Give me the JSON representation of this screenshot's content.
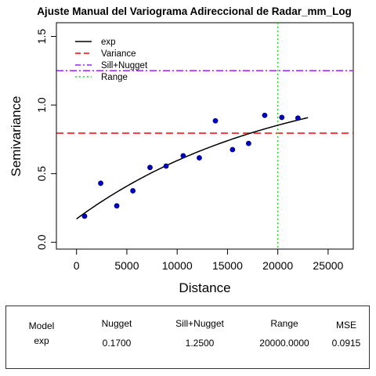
{
  "chart_data": {
    "type": "scatter",
    "title": "Ajuste Manual del Variograma Adireccional de Radar_mm_Log",
    "xlabel": "Distance",
    "ylabel": "Semivariance",
    "xlim": [
      -2000,
      27500
    ],
    "ylim": [
      -0.05,
      1.6
    ],
    "xticks": [
      0,
      5000,
      10000,
      15000,
      20000,
      25000
    ],
    "yticks": [
      0.0,
      0.5,
      1.0,
      1.5
    ],
    "xtick_labels": [
      "0",
      "5000",
      "10000",
      "15000",
      "20000",
      "25000"
    ],
    "ytick_labels": [
      "0.0",
      "0.5",
      "1.0",
      "1.5"
    ],
    "grid": false,
    "legend_position": "top-left",
    "points": [
      {
        "x": 800,
        "y": 0.19
      },
      {
        "x": 2400,
        "y": 0.43
      },
      {
        "x": 4000,
        "y": 0.265
      },
      {
        "x": 5600,
        "y": 0.375
      },
      {
        "x": 7300,
        "y": 0.545
      },
      {
        "x": 8900,
        "y": 0.555
      },
      {
        "x": 10600,
        "y": 0.63
      },
      {
        "x": 12200,
        "y": 0.615
      },
      {
        "x": 13800,
        "y": 0.885
      },
      {
        "x": 15500,
        "y": 0.675
      },
      {
        "x": 17100,
        "y": 0.72
      },
      {
        "x": 18700,
        "y": 0.925
      },
      {
        "x": 20400,
        "y": 0.91
      },
      {
        "x": 22000,
        "y": 0.905
      }
    ],
    "model_curve": {
      "model": "exp",
      "nugget": 0.17,
      "sill_plus_nugget": 1.25,
      "range": 20000,
      "x_from": 0,
      "x_to": 23000
    },
    "reference_lines": {
      "variance": 0.795,
      "sill_nugget": 1.25,
      "range": 20000
    },
    "legend": [
      {
        "label": "exp",
        "color": "#000000",
        "style": "solid"
      },
      {
        "label": "Variance",
        "color": "#ff0000",
        "style": "dashed"
      },
      {
        "label": "Sill+Nugget",
        "color": "#a020f0",
        "style": "dashdot"
      },
      {
        "label": "Range",
        "color": "#00ee00",
        "style": "dotted"
      }
    ],
    "colors": {
      "points_fill": "#0000cc",
      "points_stroke": "#000066",
      "curve": "#000000",
      "variance": "#ff0000",
      "sill": "#a020f0",
      "range": "#00ee00"
    }
  },
  "table": {
    "headers": [
      "Model",
      "Nugget",
      "Sill+Nugget",
      "Range",
      "MSE"
    ],
    "row": [
      "exp",
      "0.1700",
      "1.2500",
      "20000.0000",
      "0.0915"
    ]
  }
}
